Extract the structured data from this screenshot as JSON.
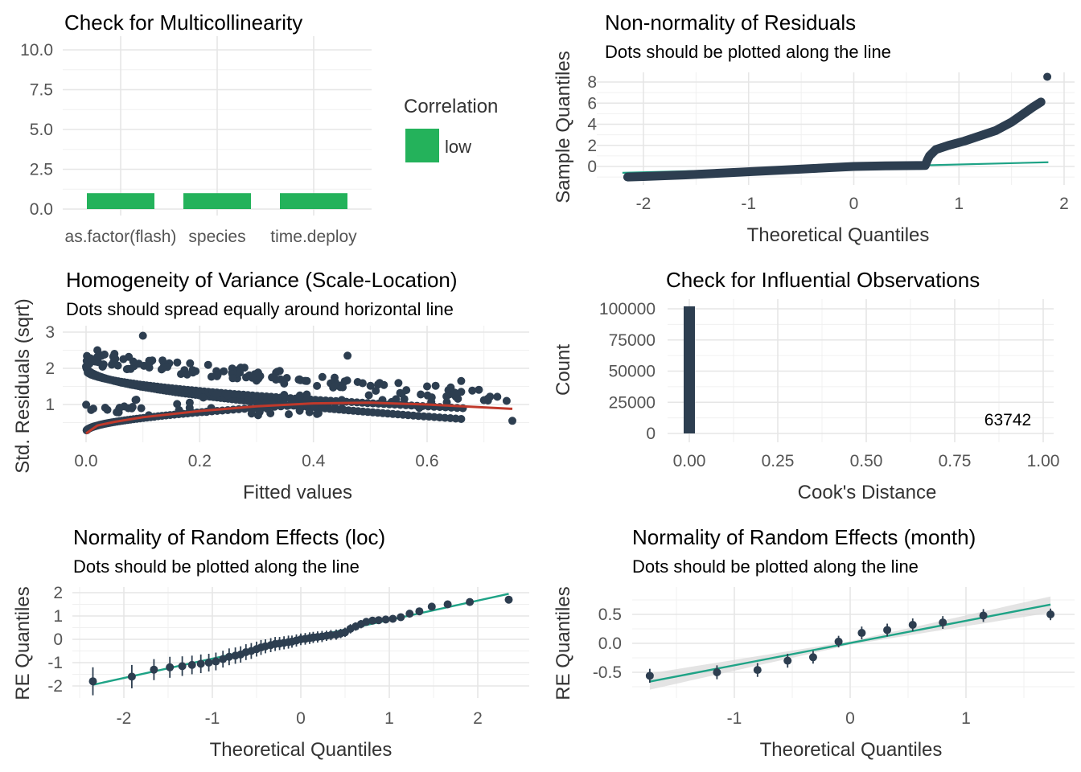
{
  "colors": {
    "point": "#2d3e50",
    "reference_line": "#1ea386",
    "bar_low": "#24b25b",
    "loess": "#c0392b",
    "ribbon": "#d9d9d9"
  },
  "chart_data": [
    {
      "id": "vif",
      "type": "bar",
      "title": "Check for Multicollinearity",
      "subtitle": "",
      "xlabel": "",
      "ylabel": "",
      "categories": [
        "as.factor(flash)",
        "species",
        "time.deploy"
      ],
      "values": [
        1.0,
        1.0,
        1.0
      ],
      "ylim": [
        0,
        10
      ],
      "yticks": [
        "0.0",
        "2.5",
        "5.0",
        "7.5",
        "10.0"
      ],
      "legend": {
        "title": "Correlation",
        "items": [
          "low"
        ],
        "position": "right"
      },
      "grid": true
    },
    {
      "id": "qq_residuals",
      "type": "scatter",
      "title": "Non-normality of Residuals",
      "subtitle": "Dots should be plotted along the line",
      "xlabel": "Theoretical Quantiles",
      "ylabel": "Sample Quantiles",
      "xlim": [
        -2.2,
        2.0
      ],
      "ylim": [
        -1.5,
        9.0
      ],
      "xticks": [
        "-2",
        "-1",
        "0",
        "1",
        "2"
      ],
      "yticks": [
        "0",
        "2",
        "4",
        "6",
        "8"
      ],
      "reference_line": {
        "from": [
          -2.2,
          -0.6
        ],
        "to": [
          1.85,
          0.4
        ]
      },
      "curve": [
        [
          -2.15,
          -1.0
        ],
        [
          -2.0,
          -0.95
        ],
        [
          -1.6,
          -0.8
        ],
        [
          -1.2,
          -0.6
        ],
        [
          -0.8,
          -0.4
        ],
        [
          -0.4,
          -0.2
        ],
        [
          0.0,
          0.0
        ],
        [
          0.3,
          0.05
        ],
        [
          0.6,
          0.08
        ],
        [
          0.68,
          0.1
        ],
        [
          0.7,
          0.6
        ],
        [
          0.72,
          1.0
        ],
        [
          0.78,
          1.6
        ],
        [
          0.9,
          2.0
        ],
        [
          1.05,
          2.4
        ],
        [
          1.2,
          2.9
        ],
        [
          1.35,
          3.4
        ],
        [
          1.5,
          4.2
        ],
        [
          1.6,
          4.9
        ],
        [
          1.7,
          5.6
        ],
        [
          1.78,
          6.1
        ]
      ],
      "outlier": [
        1.84,
        8.5
      ],
      "grid": true
    },
    {
      "id": "scale_location",
      "type": "scatter",
      "title": "Homogeneity of Variance (Scale-Location)",
      "subtitle": "Dots should spread equally around horizontal line",
      "xlabel": "Fitted values",
      "ylabel": "Std. Residuals (sqrt)",
      "xlim": [
        -0.04,
        0.78
      ],
      "ylim": [
        0.1,
        3.1
      ],
      "xticks": [
        "0.0",
        "0.2",
        "0.4",
        "0.6"
      ],
      "yticks": [
        "1",
        "2",
        "3"
      ],
      "loess": [
        [
          0.0,
          0.2
        ],
        [
          0.02,
          0.42
        ],
        [
          0.05,
          0.52
        ],
        [
          0.1,
          0.65
        ],
        [
          0.2,
          0.82
        ],
        [
          0.3,
          0.95
        ],
        [
          0.4,
          1.03
        ],
        [
          0.5,
          1.05
        ],
        [
          0.6,
          1.0
        ],
        [
          0.75,
          0.88
        ]
      ],
      "grid": true
    },
    {
      "id": "cooks_distance",
      "type": "bar",
      "title": "Check for Influential Observations",
      "subtitle": "",
      "xlabel": "Cook's Distance",
      "ylabel": "Count",
      "bins": [
        {
          "x": 0.0,
          "count": 102000
        }
      ],
      "xlim": [
        -0.05,
        1.03
      ],
      "ylim": [
        0,
        105000
      ],
      "xticks": [
        "0.00",
        "0.25",
        "0.50",
        "0.75",
        "1.00"
      ],
      "yticks": [
        "0",
        "25000",
        "50000",
        "75000",
        "100000"
      ],
      "annotation": {
        "text": "63742",
        "x": 0.9,
        "y": 11000
      },
      "grid": true
    },
    {
      "id": "re_loc",
      "type": "scatter",
      "title": "Normality of Random Effects (loc)",
      "subtitle": "Dots should be plotted along the line",
      "xlabel": "Theoretical Quantiles",
      "ylabel": "RE Quantiles",
      "xlim": [
        -2.6,
        2.55
      ],
      "ylim": [
        -2.45,
        2.3
      ],
      "xticks": [
        "-2",
        "-1",
        "0",
        "1",
        "2"
      ],
      "yticks": [
        "-2",
        "-1",
        "0",
        "1",
        "2"
      ],
      "reference_line": {
        "from": [
          -2.35,
          -1.95
        ],
        "to": [
          2.35,
          1.95
        ]
      },
      "x": [
        -2.35,
        -1.91,
        -1.66,
        -1.48,
        -1.34,
        -1.23,
        -1.13,
        -1.04,
        -0.96,
        -0.88,
        -0.81,
        -0.74,
        -0.68,
        -0.62,
        -0.56,
        -0.5,
        -0.45,
        -0.4,
        -0.34,
        -0.29,
        -0.24,
        -0.19,
        -0.14,
        -0.1,
        -0.05,
        0.0,
        0.05,
        0.1,
        0.14,
        0.19,
        0.24,
        0.29,
        0.34,
        0.4,
        0.45,
        0.5,
        0.56,
        0.62,
        0.68,
        0.74,
        0.81,
        0.88,
        0.96,
        1.04,
        1.13,
        1.23,
        1.34,
        1.48,
        1.66,
        1.91,
        2.35
      ],
      "y": [
        -1.8,
        -1.6,
        -1.3,
        -1.2,
        -1.15,
        -1.1,
        -1.05,
        -1.0,
        -0.95,
        -0.85,
        -0.75,
        -0.7,
        -0.65,
        -0.55,
        -0.5,
        -0.42,
        -0.35,
        -0.3,
        -0.25,
        -0.2,
        -0.18,
        -0.15,
        -0.12,
        -0.1,
        -0.05,
        0.0,
        0.02,
        0.05,
        0.08,
        0.1,
        0.12,
        0.15,
        0.18,
        0.2,
        0.25,
        0.3,
        0.45,
        0.55,
        0.65,
        0.75,
        0.8,
        0.82,
        0.85,
        0.88,
        0.95,
        1.1,
        1.2,
        1.4,
        1.5,
        1.6,
        1.7
      ],
      "err": [
        0.6,
        0.5,
        0.45,
        0.45,
        0.42,
        0.4,
        0.4,
        0.38,
        0.38,
        0.36,
        0.36,
        0.35,
        0.35,
        0.34,
        0.34,
        0.32,
        0.32,
        0.3,
        0.3,
        0.3,
        0.28,
        0.28,
        0.28,
        0.26,
        0.26,
        0.25,
        0.25,
        0.25,
        0.24,
        0.24,
        0.24,
        0.22,
        0.22,
        0.22,
        0.2,
        0.2,
        0.2,
        0.18,
        0.18,
        0.15,
        0.12,
        0.1,
        0.1,
        0.1,
        0.08,
        0.08,
        0.08,
        0.08,
        0.08,
        0.08,
        0.1
      ],
      "grid": true
    },
    {
      "id": "re_month",
      "type": "scatter",
      "title": "Normality of Random Effects (month)",
      "subtitle": "Dots should be plotted along the line",
      "xlabel": "Theoretical Quantiles",
      "ylabel": "RE Quantiles",
      "xlim": [
        -1.9,
        1.9
      ],
      "ylim": [
        -0.8,
        0.85
      ],
      "xticks": [
        "-1",
        "0",
        "1"
      ],
      "yticks": [
        "-0.5",
        "0.0",
        "0.5"
      ],
      "reference_line": {
        "from": [
          -1.73,
          -0.66
        ],
        "to": [
          1.73,
          0.67
        ]
      },
      "ribbon_halfwidth": [
        0.14,
        0.03,
        0.14
      ],
      "x": [
        -1.73,
        -1.15,
        -0.8,
        -0.54,
        -0.32,
        -0.1,
        0.1,
        0.32,
        0.54,
        0.8,
        1.15,
        1.73
      ],
      "y": [
        -0.56,
        -0.5,
        -0.46,
        -0.3,
        -0.24,
        0.03,
        0.18,
        0.23,
        0.32,
        0.36,
        0.48,
        0.5
      ],
      "err": [
        0.12,
        0.12,
        0.12,
        0.12,
        0.11,
        0.1,
        0.11,
        0.11,
        0.11,
        0.11,
        0.11,
        0.1
      ],
      "grid": true
    }
  ]
}
